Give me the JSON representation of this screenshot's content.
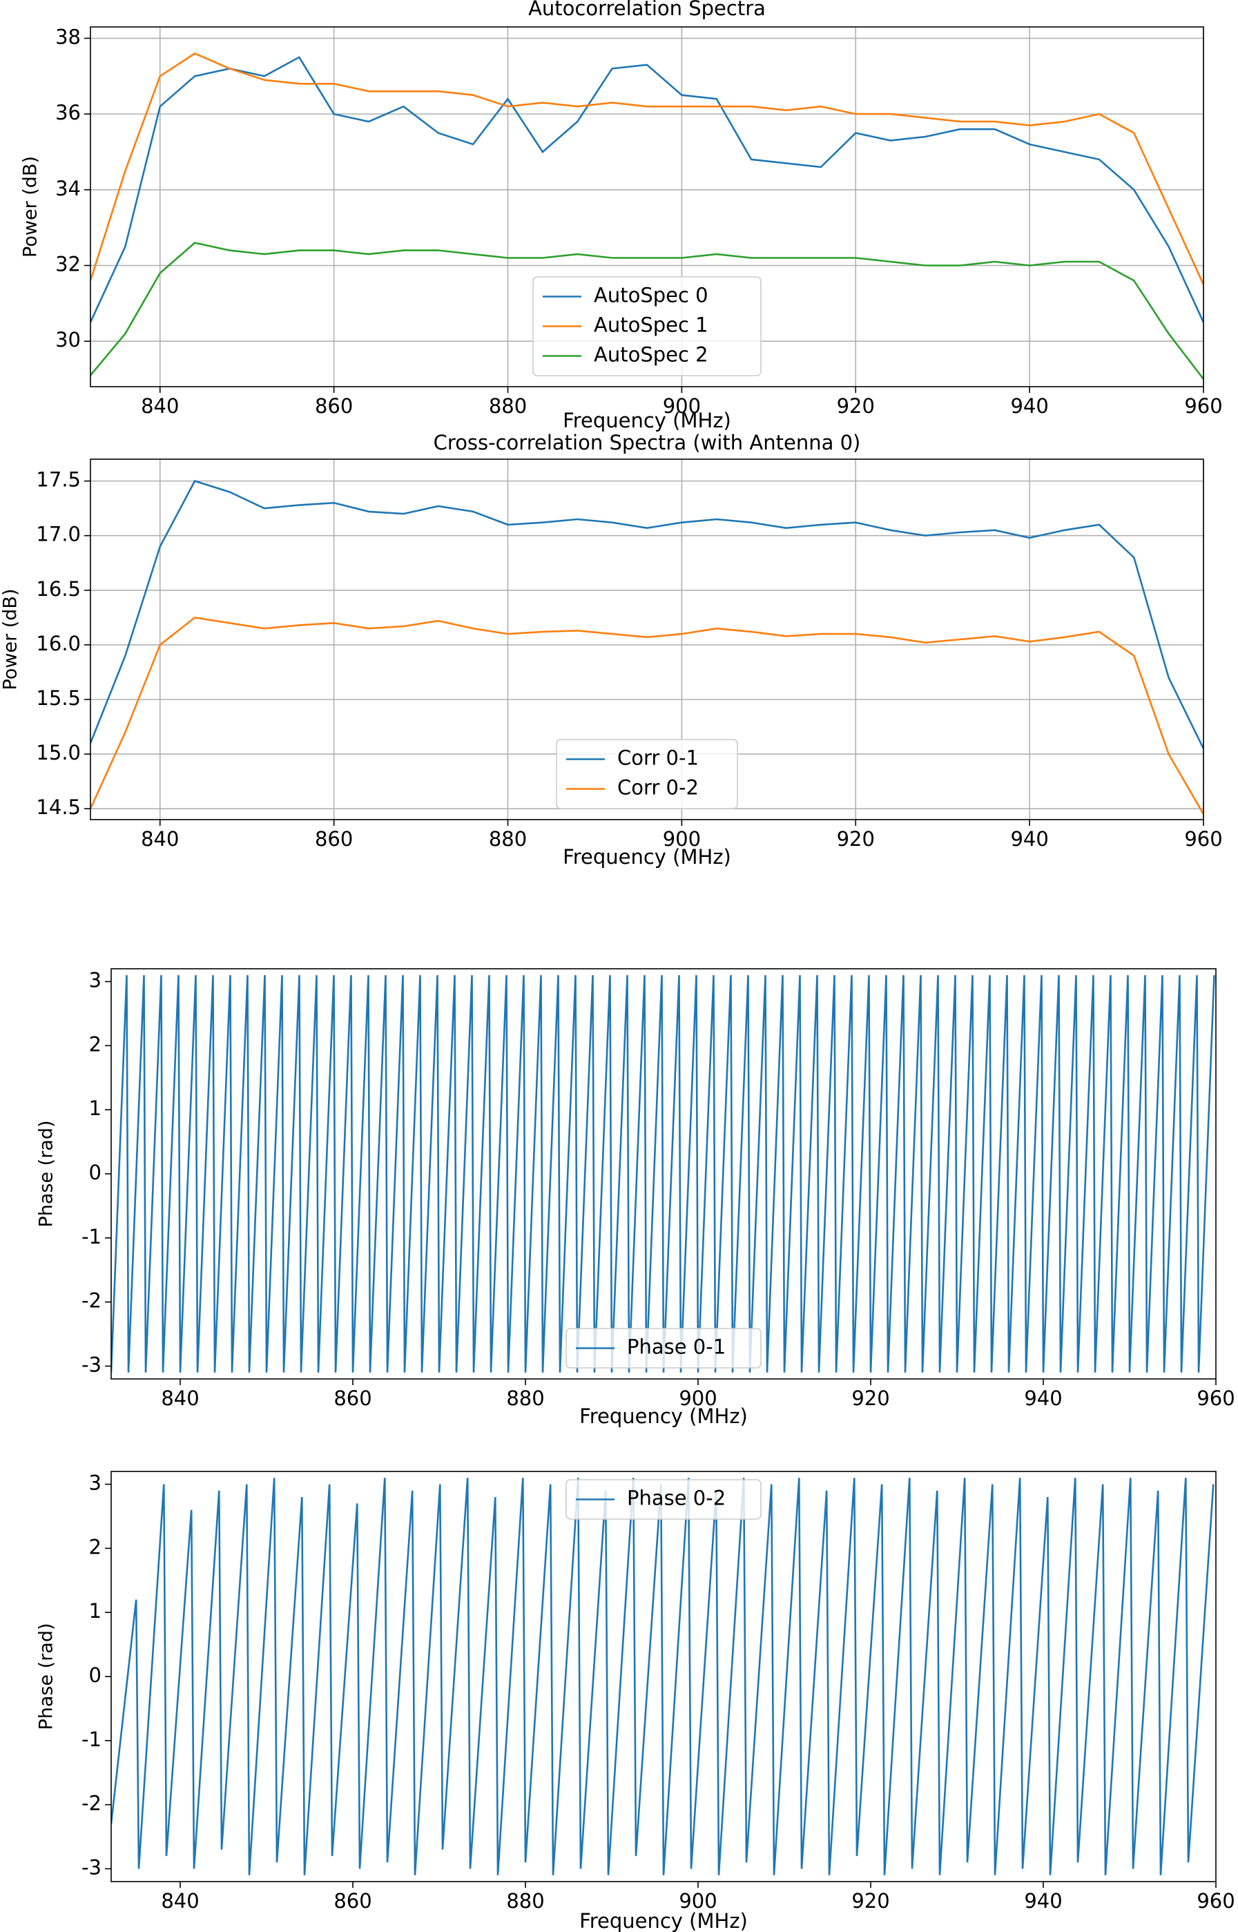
{
  "chart_data": [
    {
      "type": "line",
      "title": "Autocorrelation Spectra",
      "xlabel": "Frequency (MHz)",
      "ylabel": "Power (dB)",
      "x": [
        832,
        836,
        840,
        844,
        848,
        852,
        856,
        860,
        864,
        868,
        872,
        876,
        880,
        884,
        888,
        892,
        896,
        900,
        904,
        908,
        912,
        916,
        920,
        924,
        928,
        932,
        936,
        940,
        944,
        948,
        952,
        956,
        960
      ],
      "series": [
        {
          "name": "AutoSpec 0",
          "color": "#1f77b4",
          "values": [
            30.5,
            32.5,
            36.2,
            37.0,
            37.2,
            37.0,
            37.5,
            36.0,
            35.8,
            36.2,
            35.5,
            35.2,
            36.4,
            35.0,
            35.8,
            37.2,
            37.3,
            36.5,
            36.4,
            34.8,
            34.7,
            34.6,
            35.5,
            35.3,
            35.4,
            35.6,
            35.6,
            35.2,
            35.0,
            34.8,
            34.0,
            32.5,
            30.5
          ]
        },
        {
          "name": "AutoSpec 1",
          "color": "#ff7f0e",
          "values": [
            31.6,
            34.5,
            37.0,
            37.6,
            37.2,
            36.9,
            36.8,
            36.8,
            36.6,
            36.6,
            36.6,
            36.5,
            36.2,
            36.3,
            36.2,
            36.3,
            36.2,
            36.2,
            36.2,
            36.2,
            36.1,
            36.2,
            36.0,
            36.0,
            35.9,
            35.8,
            35.8,
            35.7,
            35.8,
            36.0,
            35.5,
            33.5,
            31.5
          ]
        },
        {
          "name": "AutoSpec 2",
          "color": "#2ca02c",
          "values": [
            29.1,
            30.2,
            31.8,
            32.6,
            32.4,
            32.3,
            32.4,
            32.4,
            32.3,
            32.4,
            32.4,
            32.3,
            32.2,
            32.2,
            32.3,
            32.2,
            32.2,
            32.2,
            32.3,
            32.2,
            32.2,
            32.2,
            32.2,
            32.1,
            32.0,
            32.0,
            32.1,
            32.0,
            32.1,
            32.1,
            31.6,
            30.2,
            29.0
          ]
        }
      ],
      "xlim": [
        832,
        960
      ],
      "xticks": [
        840,
        860,
        880,
        900,
        920,
        940,
        960
      ],
      "ylim": [
        28.8,
        38.3
      ],
      "yticks": [
        30,
        32,
        34,
        36,
        38
      ],
      "grid": true,
      "legend": "lower center"
    },
    {
      "type": "line",
      "title": "Cross-correlation Spectra (with Antenna 0)",
      "xlabel": "Frequency (MHz)",
      "ylabel": "Power (dB)",
      "x": [
        832,
        836,
        840,
        844,
        848,
        852,
        856,
        860,
        864,
        868,
        872,
        876,
        880,
        884,
        888,
        892,
        896,
        900,
        904,
        908,
        912,
        916,
        920,
        924,
        928,
        932,
        936,
        940,
        944,
        948,
        952,
        956,
        960
      ],
      "series": [
        {
          "name": "Corr 0-1",
          "color": "#1f77b4",
          "values": [
            15.1,
            15.9,
            16.9,
            17.5,
            17.4,
            17.25,
            17.28,
            17.3,
            17.22,
            17.2,
            17.27,
            17.22,
            17.1,
            17.12,
            17.15,
            17.12,
            17.07,
            17.12,
            17.15,
            17.12,
            17.07,
            17.1,
            17.12,
            17.05,
            17.0,
            17.03,
            17.05,
            16.98,
            17.05,
            17.1,
            16.8,
            15.7,
            15.05
          ]
        },
        {
          "name": "Corr 0-2",
          "color": "#ff7f0e",
          "values": [
            14.5,
            15.2,
            16.0,
            16.25,
            16.2,
            16.15,
            16.18,
            16.2,
            16.15,
            16.17,
            16.22,
            16.15,
            16.1,
            16.12,
            16.13,
            16.1,
            16.07,
            16.1,
            16.15,
            16.12,
            16.08,
            16.1,
            16.1,
            16.07,
            16.02,
            16.05,
            16.08,
            16.03,
            16.07,
            16.12,
            15.9,
            15.0,
            14.45
          ]
        }
      ],
      "xlim": [
        832,
        960
      ],
      "xticks": [
        840,
        860,
        880,
        900,
        920,
        940,
        960
      ],
      "ylim": [
        14.4,
        17.7
      ],
      "yticks": [
        14.5,
        {
          "value": 15,
          "label": "15.0"
        },
        15.5,
        {
          "value": 16,
          "label": "16.0"
        },
        16.5,
        {
          "value": 17,
          "label": "17.0"
        },
        17.5
      ],
      "grid": true,
      "legend": "lower center"
    },
    {
      "type": "line",
      "xlabel": "Frequency (MHz)",
      "ylabel": "Phase (rad)",
      "x": [
        832,
        833.8,
        834,
        835.8,
        836,
        837.8,
        838,
        839.8,
        840,
        841.8,
        842,
        843.8,
        844,
        845.8,
        846,
        847.8,
        848,
        849.8,
        850,
        851.8,
        852,
        853.8,
        854,
        855.8,
        856,
        857.8,
        858,
        859.8,
        860,
        861.8,
        862,
        863.8,
        864,
        865.8,
        866,
        867.8,
        868,
        869.8,
        870,
        871.8,
        872,
        873.8,
        874,
        875.8,
        876,
        877.8,
        878,
        879.8,
        880,
        881.8,
        882,
        883.8,
        884,
        885.8,
        886,
        887.8,
        888,
        889.8,
        890,
        891.8,
        892,
        893.8,
        894,
        895.8,
        896,
        897.8,
        898,
        899.8,
        900,
        901.8,
        902,
        903.8,
        904,
        905.8,
        906,
        907.8,
        908,
        909.8,
        910,
        911.8,
        912,
        913.8,
        914,
        915.8,
        916,
        917.8,
        918,
        919.8,
        920,
        921.8,
        922,
        923.8,
        924,
        925.8,
        926,
        927.8,
        928,
        929.8,
        930,
        931.8,
        932,
        933.8,
        934,
        935.8,
        936,
        937.8,
        938,
        939.8,
        940,
        941.8,
        942,
        943.8,
        944,
        945.8,
        946,
        947.8,
        948,
        949.8,
        950,
        951.8,
        952,
        953.8,
        954,
        955.8,
        956,
        957.8,
        958,
        959.8
      ],
      "series": [
        {
          "name": "Phase 0-1",
          "color": "#1f77b4",
          "values": [
            -3.1,
            3.1,
            -3.1,
            3.1,
            -3.1,
            3.1,
            -3.1,
            3.1,
            -3.1,
            3.1,
            -3.1,
            3.1,
            -3.1,
            3.1,
            -3.1,
            3.1,
            -3.1,
            3.1,
            -3.1,
            3.1,
            -3.1,
            3.1,
            -3.1,
            3.1,
            -3.1,
            3.1,
            -3.1,
            3.1,
            -3.1,
            3.1,
            -3.1,
            3.1,
            -3.1,
            3.1,
            -3.1,
            3.1,
            -3.1,
            3.1,
            -3.1,
            3.1,
            -3.1,
            3.1,
            -3.1,
            3.1,
            -3.1,
            3.1,
            -3.1,
            3.1,
            -3.1,
            3.1,
            -3.1,
            3.1,
            -3.1,
            3.1,
            -3.1,
            3.1,
            -3.1,
            3.1,
            -3.1,
            3.1,
            -3.1,
            3.1,
            -3.1,
            3.1,
            -3.1,
            3.1,
            -3.1,
            3.1,
            -3.1,
            3.1,
            -3.1,
            3.1,
            -3.1,
            3.1,
            -3.1,
            3.1,
            -3.1,
            3.1,
            -3.1,
            3.1,
            -3.1,
            3.1,
            -3.1,
            3.1,
            -3.1,
            3.1,
            -3.1,
            3.1,
            -3.1,
            3.1,
            -3.1,
            3.1,
            -3.1,
            3.1,
            -3.1,
            3.1,
            -3.1,
            3.1,
            -3.1,
            3.1,
            -3.1,
            3.1,
            -3.1,
            3.1,
            -3.1,
            3.1,
            -3.1,
            3.1,
            -3.1,
            3.1,
            -3.1,
            3.1,
            -3.1,
            3.1,
            -3.1,
            3.1,
            -3.1,
            3.1,
            -3.1,
            3.1,
            -3.1,
            3.1,
            -3.1,
            3.1,
            -3.1,
            3.1,
            -3.1,
            3.1
          ]
        }
      ],
      "xlim": [
        832,
        960
      ],
      "xticks": [
        840,
        860,
        880,
        900,
        920,
        940,
        960
      ],
      "ylim": [
        -3.2,
        3.2
      ],
      "yticks": [
        -3,
        -2,
        -1,
        0,
        1,
        2,
        3
      ],
      "grid": false,
      "legend": "lower center"
    },
    {
      "type": "line",
      "xlabel": "Frequency (MHz)",
      "ylabel": "Phase (rad)",
      "x": [
        832,
        834.9,
        835.2,
        838.1,
        838.4,
        841.3,
        841.6,
        844.5,
        844.8,
        847.7,
        848,
        850.9,
        851.2,
        854.1,
        854.4,
        857.3,
        857.6,
        860.5,
        860.8,
        863.7,
        864,
        866.9,
        867.2,
        870.1,
        870.4,
        873.3,
        873.6,
        876.5,
        876.8,
        879.7,
        880,
        882.9,
        883.2,
        886.1,
        886.4,
        889.3,
        889.6,
        892.5,
        892.8,
        895.7,
        896,
        898.9,
        899.2,
        902.1,
        902.4,
        905.3,
        905.6,
        908.5,
        908.8,
        911.7,
        912,
        914.9,
        915.2,
        918.1,
        918.4,
        921.3,
        921.6,
        924.5,
        924.8,
        927.7,
        928,
        930.9,
        931.2,
        934.1,
        934.4,
        937.3,
        937.6,
        940.5,
        940.8,
        943.7,
        944,
        946.9,
        947.2,
        950.1,
        950.4,
        953.3,
        953.6,
        956.5,
        956.8,
        959.7
      ],
      "series": [
        {
          "name": "Phase 0-2",
          "color": "#1f77b4",
          "values": [
            -2.3,
            1.2,
            -3.0,
            3.0,
            -2.8,
            2.6,
            -3.0,
            2.9,
            -2.7,
            3.0,
            -3.1,
            3.1,
            -2.9,
            2.8,
            -3.1,
            3.0,
            -2.8,
            2.7,
            -3.0,
            3.1,
            -2.9,
            2.9,
            -3.1,
            3.0,
            -2.7,
            3.1,
            -3.0,
            2.8,
            -3.1,
            3.1,
            -2.9,
            3.0,
            -3.1,
            3.1,
            -3.0,
            2.9,
            -3.1,
            3.1,
            -2.8,
            3.0,
            -3.1,
            3.1,
            -3.0,
            2.9,
            -3.1,
            3.1,
            -2.9,
            3.0,
            -3.1,
            3.1,
            -3.0,
            2.9,
            -3.1,
            3.1,
            -2.8,
            3.0,
            -3.1,
            3.1,
            -3.0,
            2.9,
            -3.1,
            3.1,
            -2.9,
            3.0,
            -3.1,
            3.1,
            -3.0,
            2.8,
            -3.1,
            3.1,
            -2.9,
            3.0,
            -3.1,
            3.1,
            -3.0,
            2.9,
            -3.1,
            3.1,
            -2.9,
            3.0
          ]
        }
      ],
      "xlim": [
        832,
        960
      ],
      "xticks": [
        840,
        860,
        880,
        900,
        920,
        940,
        960
      ],
      "ylim": [
        -3.2,
        3.2
      ],
      "yticks": [
        -3,
        -2,
        -1,
        0,
        1,
        2,
        3
      ],
      "grid": false,
      "legend": "upper center"
    }
  ]
}
